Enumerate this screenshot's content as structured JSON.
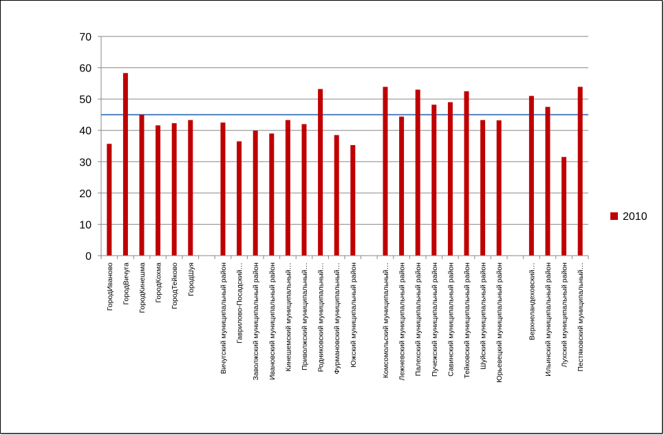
{
  "chart_data": {
    "type": "bar",
    "categories": [
      "ГородИваново",
      "ГородВичуга",
      "ГородКинешма",
      "ГородКохма",
      "ГородТейково",
      "ГородШуя",
      "",
      "Вичугский муниципальный район",
      "Гаврилово-Посадский…",
      "Заволжский муниципальный район",
      "Ивановский муниципальный район",
      "Кинешемский муниципальный…",
      "Приволжский муниципальный…",
      "Родниковский муниципальный…",
      "Фурмановский муниципальный…",
      "Южский муниципальный район",
      "",
      "Комсомольский муниципальный…",
      "Лежневский муниципальный район",
      "Палехский муниципальный район",
      "Пучежский муниципальный район",
      "Савинский муниципальный район",
      "Тейковский муниципальный район",
      "Шуйский муниципальный район",
      "Юрьевецкий муниципальный район",
      "",
      "Верхнеландеховский…",
      "Ильинский муниципальный район",
      "Лухский муниципальный район",
      "Пестяковский муниципальный…"
    ],
    "series": [
      {
        "name": "2010",
        "color": "#C00000",
        "values": [
          35.7,
          58.3,
          45,
          41.6,
          42.3,
          43.3,
          null,
          42.5,
          36.5,
          39.9,
          39,
          43.3,
          42,
          53.2,
          38.5,
          35.3,
          null,
          53.9,
          44.4,
          53,
          48.2,
          49,
          52.5,
          43.3,
          43.2,
          null,
          51,
          47.5,
          31.5,
          53.9
        ]
      }
    ],
    "reference_line": {
      "value": 45,
      "color": "#4F81BD"
    },
    "ylim": [
      0,
      70
    ],
    "yticks": [
      "0",
      "10",
      "20",
      "30",
      "40",
      "50",
      "60",
      "70"
    ],
    "grid": true,
    "legend_position": "right",
    "title": "",
    "xlabel": "",
    "ylabel": ""
  }
}
